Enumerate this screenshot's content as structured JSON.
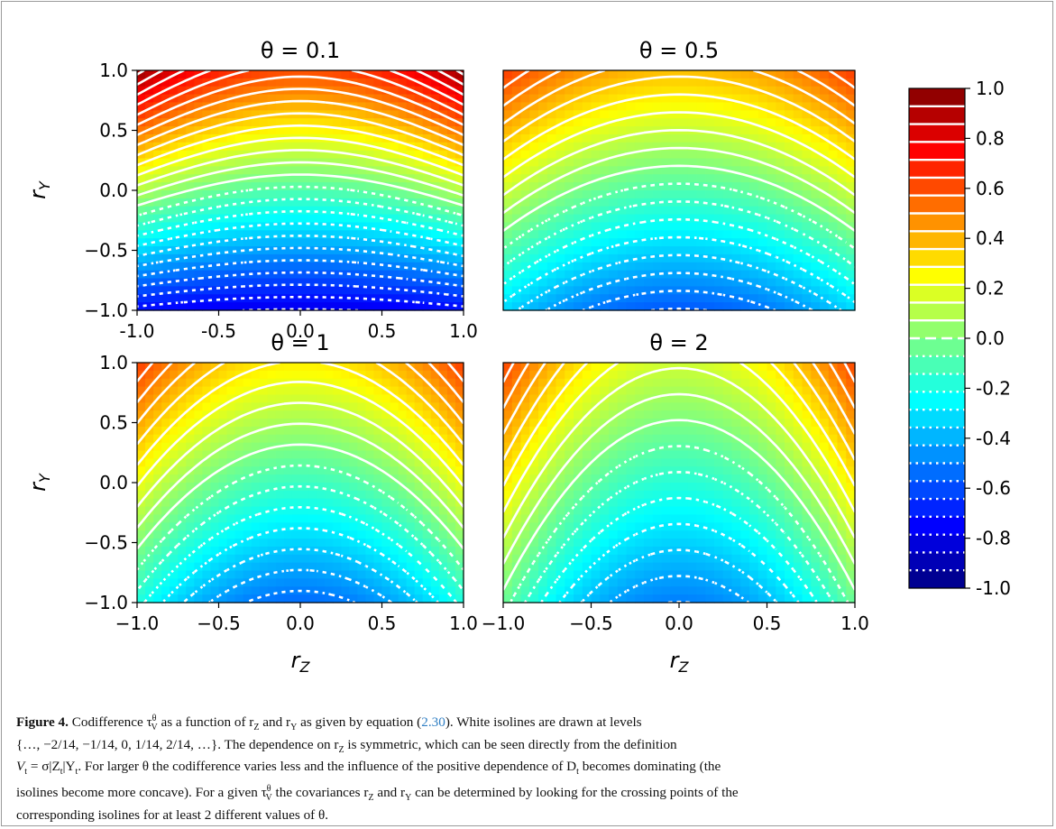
{
  "chart_data": [
    {
      "type": "heatmap",
      "title": "θ = 0.1",
      "theta": 0.1,
      "xlabel": "",
      "ylabel": "r_Y",
      "xlim": [
        -1.0,
        1.0
      ],
      "ylim": [
        -1.0,
        1.0
      ],
      "xticks": [
        "-1.0",
        "-0.5",
        "0.0",
        "0.5",
        "1.0"
      ],
      "yticks": [
        "1.0",
        "0.5",
        "0.0",
        "−0.5",
        "−1.0"
      ],
      "color_range": [
        -1.0,
        1.0
      ],
      "isoline_levels": "multiples of 1/14",
      "sample_values": [
        {
          "r_Z": 0.0,
          "r_Y": 1.0,
          "value": 0.72
        },
        {
          "r_Z": 0.0,
          "r_Y": 0.0,
          "value": 0.02
        },
        {
          "r_Z": 0.0,
          "r_Y": -1.0,
          "value": -0.68
        },
        {
          "r_Z": 1.0,
          "r_Y": 1.0,
          "value": 0.82
        },
        {
          "r_Z": 1.0,
          "r_Y": -1.0,
          "value": -0.82
        }
      ]
    },
    {
      "type": "heatmap",
      "title": "θ = 0.5",
      "theta": 0.5,
      "xlabel": "",
      "ylabel": "",
      "xlim": [
        -1.0,
        1.0
      ],
      "ylim": [
        -1.0,
        1.0
      ],
      "xticks": [],
      "yticks": [],
      "color_range": [
        -1.0,
        1.0
      ],
      "isoline_levels": "multiples of 1/14",
      "sample_values": [
        {
          "r_Z": 0.0,
          "r_Y": 1.0,
          "value": 0.62
        },
        {
          "r_Z": 0.0,
          "r_Y": 0.0,
          "value": 0.0
        },
        {
          "r_Z": 0.0,
          "r_Y": -1.0,
          "value": -0.34
        },
        {
          "r_Z": 1.0,
          "r_Y": 1.0,
          "value": 0.74
        },
        {
          "r_Z": 1.0,
          "r_Y": -1.0,
          "value": -0.28
        }
      ]
    },
    {
      "type": "heatmap",
      "title": "θ = 1",
      "theta": 1,
      "xlabel": "r_Z",
      "ylabel": "r_Y",
      "xlim": [
        -1.0,
        1.0
      ],
      "ylim": [
        -1.0,
        1.0
      ],
      "xticks": [
        "−1.0",
        "−0.5",
        "0.0",
        "0.5",
        "1.0"
      ],
      "yticks": [
        "1.0",
        "0.5",
        "0.0",
        "−0.5",
        "−1.0"
      ],
      "color_range": [
        -1.0,
        1.0
      ],
      "isoline_levels": "multiples of 1/14",
      "sample_values": [
        {
          "r_Z": 0.0,
          "r_Y": 1.0,
          "value": 0.56
        },
        {
          "r_Z": 0.0,
          "r_Y": 0.0,
          "value": -0.06
        },
        {
          "r_Z": 0.0,
          "r_Y": -1.0,
          "value": -0.26
        },
        {
          "r_Z": 1.0,
          "r_Y": 1.0,
          "value": 0.66
        },
        {
          "r_Z": 1.0,
          "r_Y": -1.0,
          "value": -0.02
        }
      ]
    },
    {
      "type": "heatmap",
      "title": "θ = 2",
      "theta": 2,
      "xlabel": "r_Z",
      "ylabel": "",
      "xlim": [
        -1.0,
        1.0
      ],
      "ylim": [
        -1.0,
        1.0
      ],
      "xticks": [
        "−1.0",
        "−0.5",
        "0.0",
        "0.5",
        "1.0"
      ],
      "yticks": [],
      "color_range": [
        -1.0,
        1.0
      ],
      "isoline_levels": "multiples of 1/14",
      "sample_values": [
        {
          "r_Z": 0.0,
          "r_Y": 1.0,
          "value": 0.46
        },
        {
          "r_Z": 0.0,
          "r_Y": 0.0,
          "value": -0.08
        },
        {
          "r_Z": 0.0,
          "r_Y": -1.0,
          "value": -0.2
        },
        {
          "r_Z": 1.0,
          "r_Y": 1.0,
          "value": 0.6
        },
        {
          "r_Z": 1.0,
          "r_Y": -1.0,
          "value": 0.02
        }
      ]
    }
  ],
  "colorbar": {
    "range": [
      -1.0,
      1.0
    ],
    "ticks": [
      "1.0",
      "0.8",
      "0.6",
      "0.4",
      "0.2",
      "0.0",
      "-0.2",
      "-0.4",
      "-0.6",
      "-0.8",
      "-1.0"
    ],
    "tick_values": [
      1.0,
      0.8,
      0.6,
      0.4,
      0.2,
      0.0,
      -0.2,
      -0.4,
      -0.6,
      -0.8,
      -1.0
    ],
    "levels_per_unit": 14,
    "colormap": "jet"
  },
  "caption": {
    "label": "Figure 4.",
    "parts": [
      " Codifference τ",
      "θ",
      "V",
      " as a function of r",
      "Z",
      " and r",
      "Y",
      " as given by equation (",
      "2.30",
      "). White isolines are drawn at levels"
    ],
    "line2": "{…, −2/14, −1/14, 0, 1/14, 2/14, …}. The dependence on r",
    "line2_sub": "Z",
    "line2_end": " is symmetric, which can be seen directly from the definition",
    "line3_a": "V",
    "line3_a_sub": "t",
    "line3_b": " = σ|Z",
    "line3_b_sub": "t",
    "line3_c": "|Y",
    "line3_c_sub": "t",
    "line3_d": ". For larger θ the codifference varies less and the influence of the positive dependence of D",
    "line3_d_sub": "t",
    "line3_e": " becomes dominating (the",
    "line4": "isolines become more concave). For a given τ",
    "line4_sup": "θ",
    "line4_sub": "V",
    "line4_b": " the covariances r",
    "line4_b_sub": "Z",
    "line4_c": " and r",
    "line4_c_sub": "Y",
    "line4_d": " can be determined by looking for the crossing points of the",
    "line5": "corresponding isolines for at least 2 different values of θ."
  },
  "colors": {
    "isoline": "#ffffff",
    "frame": "#9a9a9a",
    "reference_link": "#2f7fc4"
  }
}
